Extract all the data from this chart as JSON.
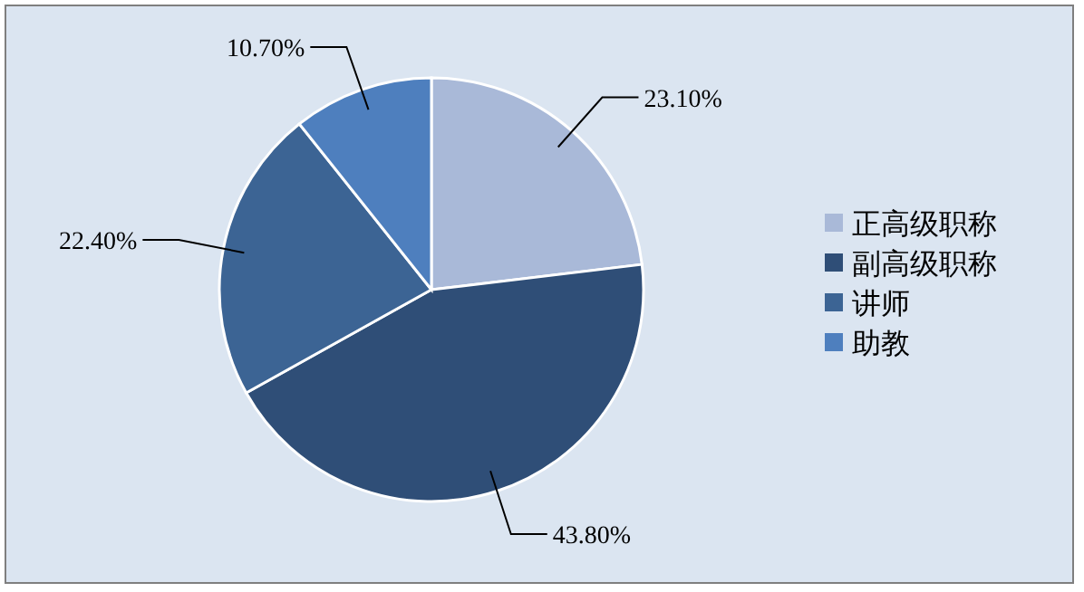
{
  "chart_data": {
    "type": "pie",
    "categories": [
      "正高级职称",
      "副高级职称",
      "讲师",
      "助教"
    ],
    "values": [
      23.1,
      43.8,
      22.4,
      10.7
    ],
    "value_labels": [
      "23.10%",
      "43.80%",
      "22.40%",
      "10.70%"
    ],
    "colors": [
      "#a9b9d8",
      "#2f4e77",
      "#3c6494",
      "#4e7fbe"
    ],
    "legend": "right"
  }
}
